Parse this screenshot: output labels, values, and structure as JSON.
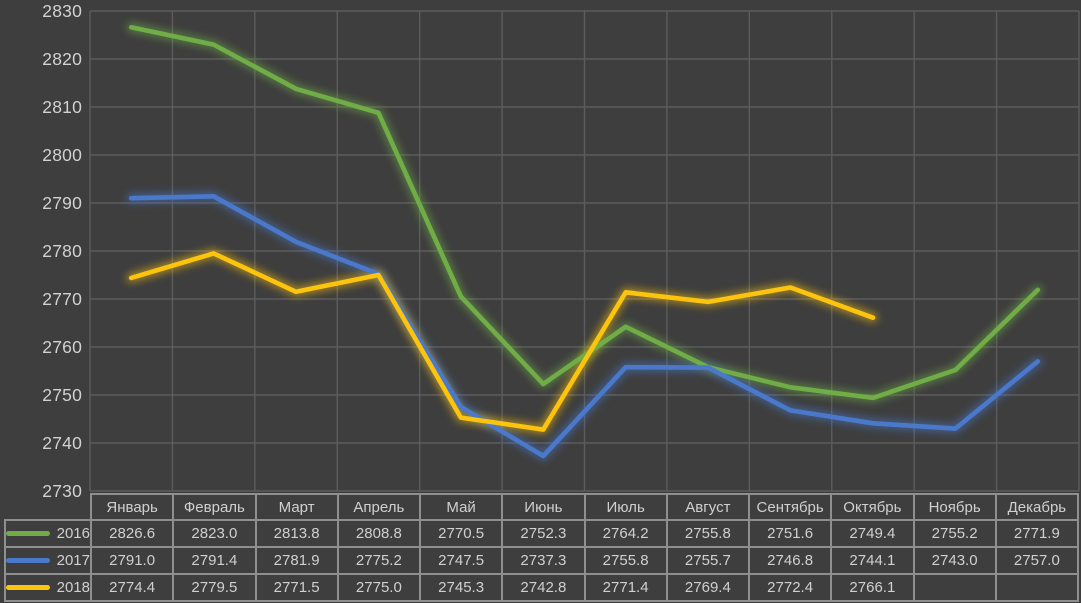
{
  "chart_data": {
    "type": "line",
    "title": "",
    "xlabel": "",
    "ylabel": "",
    "categories": [
      "Январь",
      "Февраль",
      "Март",
      "Апрель",
      "Май",
      "Июнь",
      "Июль",
      "Август",
      "Сентябрь",
      "Октябрь",
      "Ноябрь",
      "Декабрь"
    ],
    "series": [
      {
        "name": "2016",
        "color": "#70ad47",
        "values": [
          2826.6,
          2823.0,
          2813.8,
          2808.8,
          2770.5,
          2752.3,
          2764.2,
          2755.8,
          2751.6,
          2749.4,
          2755.2,
          2771.9
        ]
      },
      {
        "name": "2017",
        "color": "#4a79cc",
        "values": [
          2791.0,
          2791.4,
          2781.9,
          2775.2,
          2747.5,
          2737.3,
          2755.8,
          2755.7,
          2746.8,
          2744.1,
          2743.0,
          2757.0
        ]
      },
      {
        "name": "2018",
        "color": "#fdc40e",
        "values": [
          2774.4,
          2779.5,
          2771.5,
          2775.0,
          2745.3,
          2742.8,
          2771.4,
          2769.4,
          2772.4,
          2766.1,
          null,
          null
        ]
      }
    ],
    "ylim": [
      2730,
      2830
    ],
    "y_tick_step": 10,
    "y_tick_labels": [
      "2830",
      "2820",
      "2810",
      "2800",
      "2790",
      "2780",
      "2770",
      "2760",
      "2750",
      "2740",
      "2730"
    ],
    "grid": true,
    "legend_position": "data-table-left",
    "value_decimals": 1
  },
  "colors": {
    "background": "#3e3e3e",
    "gridline": "#5c5c5c",
    "axis_text": "#d2d2d2",
    "table_text": "#d0d0d0",
    "table_border": "#8f8f8f"
  }
}
